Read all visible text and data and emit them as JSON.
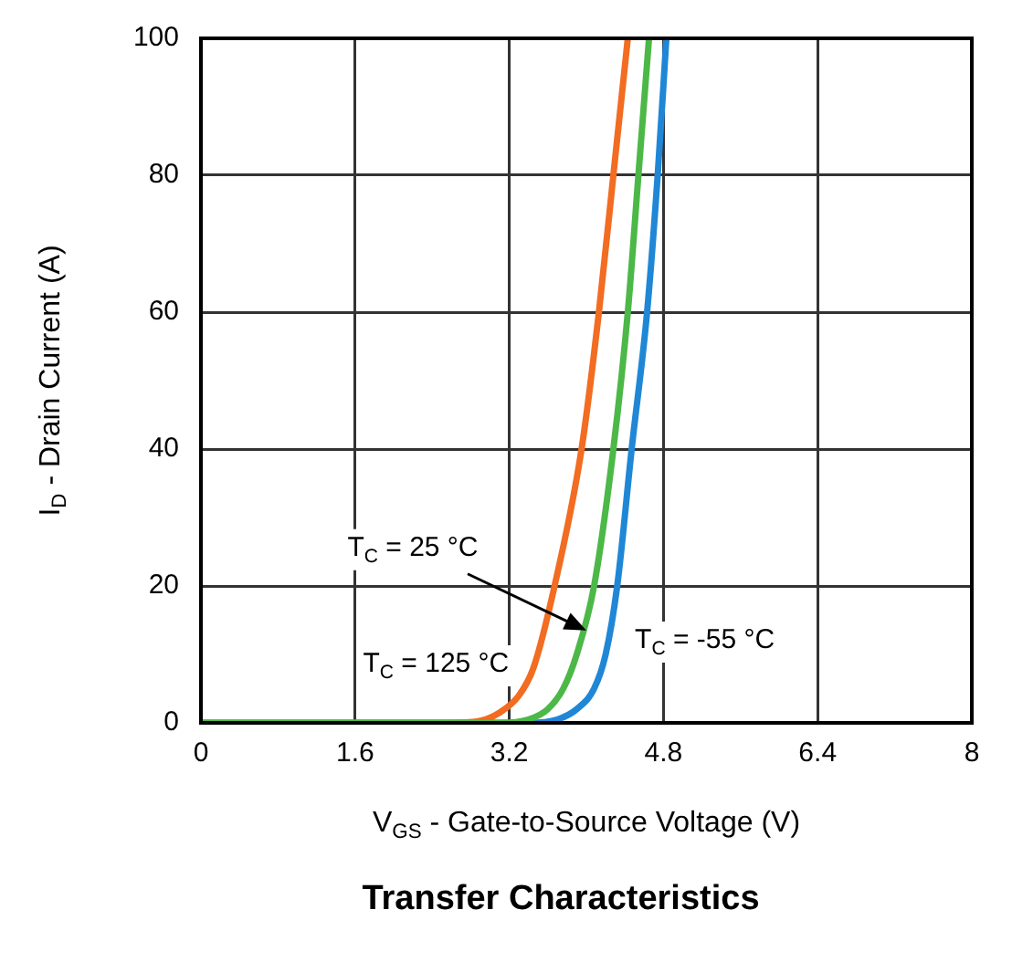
{
  "chart_data": {
    "type": "line",
    "title": "Transfer Characteristics",
    "xlabel": "V$_{GS}$ - Gate-to-Source Voltage (V)",
    "ylabel": "I$_{D}$ - Drain Current (A)",
    "xlim": [
      0,
      8
    ],
    "xticks": [
      0,
      1.6,
      3.2,
      4.8,
      6.4,
      8
    ],
    "ylim": [
      0,
      100
    ],
    "yticks": [
      0,
      20,
      40,
      60,
      80,
      100
    ],
    "grid": true,
    "legend": false,
    "marker": "none",
    "line_style": "solid",
    "series": [
      {
        "color": "#4cb847",
        "x": [
          0,
          3.1,
          3.4,
          3.6,
          3.76,
          3.9,
          4.08,
          4.28,
          4.43,
          4.54,
          4.65
        ],
        "values": [
          0,
          0,
          0.5,
          2,
          5,
          10,
          20,
          40,
          60,
          80,
          100
        ]
      },
      {
        "color": "#f26c21",
        "x": [
          0,
          2.6,
          2.9,
          3.1,
          3.3,
          3.45,
          3.67,
          3.95,
          4.13,
          4.28,
          4.43
        ],
        "values": [
          0,
          0,
          0.3,
          1.5,
          4,
          8,
          20,
          40,
          60,
          80,
          100
        ]
      },
      {
        "color": "#1f87d6",
        "x": [
          0,
          3.4,
          3.7,
          3.9,
          4.08,
          4.2,
          4.32,
          4.47,
          4.63,
          4.74,
          4.83
        ],
        "values": [
          0,
          0,
          0.5,
          2,
          5,
          10,
          20,
          40,
          60,
          80,
          100
        ]
      }
    ],
    "annotations": [
      {
        "text": "T$_{C}$ = 25 °C",
        "x": 4.0,
        "y": 13.5
      },
      {
        "text": "T$_{C}$ = 125 °C",
        "x": 3.5,
        "y": 8
      },
      {
        "text": "T$_{C}$ = -55 °C",
        "x": 4.2,
        "y": 12
      }
    ]
  }
}
